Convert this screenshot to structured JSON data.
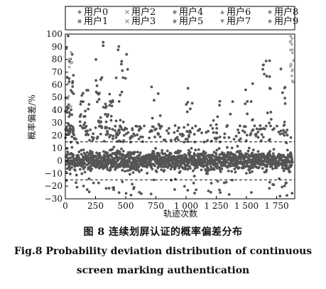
{
  "chart_data": {
    "type": "scatter",
    "title": "",
    "xlabel": "轨迹次数",
    "ylabel": "概率偏差/%",
    "xlim": [
      0,
      1900
    ],
    "ylim": [
      -30,
      100
    ],
    "x_ticks": [
      0,
      250,
      500,
      750,
      1000,
      1250,
      1500,
      1750
    ],
    "x_tick_labels": [
      "0",
      "250",
      "500",
      "750",
      "1 000",
      "1 250",
      "1 500",
      "1 750"
    ],
    "y_ticks": [
      -30,
      -20,
      -10,
      0,
      10,
      20,
      30,
      40,
      50,
      60,
      70,
      80,
      90,
      100
    ],
    "y_tick_labels": [
      "−30",
      "−20",
      "−10",
      "0",
      "10",
      "20",
      "30",
      "40",
      "50",
      "60",
      "70",
      "80",
      "90",
      "100"
    ],
    "reference_lines": [
      15,
      -15
    ],
    "legend_position": "top",
    "legend": [
      {
        "label": "用户0",
        "marker": "diamond"
      },
      {
        "label": "用户1",
        "marker": "square"
      },
      {
        "label": "用户2",
        "marker": "x"
      },
      {
        "label": "用户3",
        "marker": "x"
      },
      {
        "label": "用户4",
        "marker": "circle"
      },
      {
        "label": "用户5",
        "marker": "circle"
      },
      {
        "label": "用户6",
        "marker": "triangle-up"
      },
      {
        "label": "用户7",
        "marker": "triangle-down"
      },
      {
        "label": "用户8",
        "marker": "diamond"
      },
      {
        "label": "用户9",
        "marker": "diamond"
      }
    ],
    "colors": {
      "points": "#555555",
      "light_points": "#aaaaaa",
      "axis": "#000000"
    }
  },
  "captions": {
    "cn": "图 8   连续划屏认证的概率偏差分布",
    "en_line1": "Fig.8   Probability deviation distribution of continuous",
    "en_line2": "screen marking authentication"
  }
}
